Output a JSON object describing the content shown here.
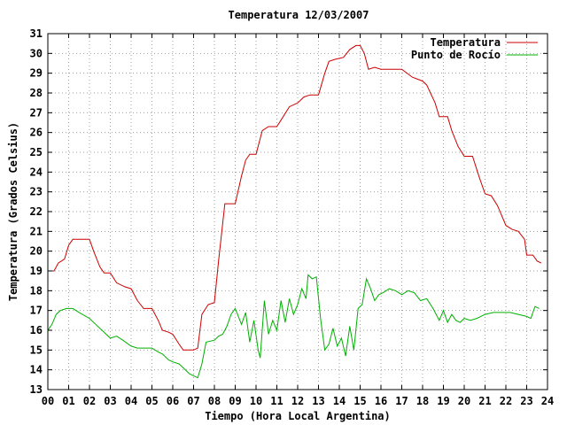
{
  "chart_data": {
    "type": "line",
    "title": "Temperatura 12/03/2007",
    "xlabel": "Tiempo (Hora Local Argentina)",
    "ylabel": "Temperatura (Grados Celsius)",
    "xlim": [
      0,
      24
    ],
    "ylim": [
      13,
      31
    ],
    "grid": true,
    "legend_position": "top-right",
    "x_ticks": [
      "00",
      "01",
      "02",
      "03",
      "04",
      "05",
      "06",
      "07",
      "08",
      "09",
      "10",
      "11",
      "12",
      "13",
      "14",
      "15",
      "16",
      "17",
      "18",
      "19",
      "20",
      "21",
      "22",
      "23",
      "24"
    ],
    "y_ticks": [
      "13",
      "14",
      "15",
      "16",
      "17",
      "18",
      "19",
      "20",
      "21",
      "22",
      "23",
      "24",
      "25",
      "26",
      "27",
      "28",
      "29",
      "30",
      "31"
    ],
    "series": [
      {
        "name": "Temperatura",
        "color": "#cc0000",
        "x": [
          0,
          0.3,
          0.5,
          0.8,
          1.0,
          1.2,
          1.5,
          2.0,
          2.2,
          2.5,
          2.7,
          3.0,
          3.3,
          3.7,
          4.0,
          4.3,
          4.6,
          4.8,
          5.0,
          5.3,
          5.5,
          5.8,
          6.0,
          6.3,
          6.5,
          6.8,
          7.0,
          7.2,
          7.4,
          7.7,
          8.0,
          8.2,
          8.5,
          9.0,
          9.3,
          9.5,
          9.7,
          10.0,
          10.3,
          10.6,
          11.0,
          11.3,
          11.6,
          12.0,
          12.3,
          12.6,
          13.0,
          13.3,
          13.5,
          13.8,
          14.2,
          14.5,
          14.8,
          15.0,
          15.2,
          15.4,
          15.7,
          16.0,
          16.5,
          17.0,
          17.5,
          18.0,
          18.2,
          18.6,
          18.8,
          19.2,
          19.4,
          19.7,
          20.0,
          20.4,
          20.7,
          21.0,
          21.3,
          21.6,
          22.0,
          22.3,
          22.6,
          22.9,
          23.0,
          23.3,
          23.5,
          23.7
        ],
        "y": [
          19.0,
          19.0,
          19.4,
          19.6,
          20.3,
          20.6,
          20.6,
          20.6,
          20.0,
          19.2,
          18.9,
          18.9,
          18.4,
          18.2,
          18.1,
          17.5,
          17.1,
          17.1,
          17.1,
          16.5,
          16.0,
          15.9,
          15.8,
          15.3,
          15.0,
          15.0,
          15.0,
          15.1,
          16.8,
          17.3,
          17.4,
          19.5,
          22.4,
          22.4,
          23.8,
          24.6,
          24.9,
          24.9,
          26.1,
          26.3,
          26.3,
          26.8,
          27.3,
          27.5,
          27.8,
          27.9,
          27.9,
          29.0,
          29.6,
          29.7,
          29.8,
          30.2,
          30.4,
          30.4,
          30.0,
          29.2,
          29.3,
          29.2,
          29.2,
          29.2,
          28.8,
          28.6,
          28.4,
          27.5,
          26.8,
          26.8,
          26.1,
          25.3,
          24.8,
          24.8,
          23.8,
          22.9,
          22.8,
          22.3,
          21.3,
          21.1,
          21.0,
          20.6,
          19.8,
          19.8,
          19.5,
          19.4
        ]
      },
      {
        "name": "Punto de Rocío",
        "color": "#00b000",
        "x": [
          0,
          0.2,
          0.4,
          0.6,
          0.9,
          1.2,
          1.5,
          2.0,
          2.3,
          2.6,
          2.8,
          3.0,
          3.3,
          3.6,
          4.0,
          4.3,
          4.6,
          5.0,
          5.3,
          5.5,
          5.8,
          6.0,
          6.3,
          6.5,
          6.8,
          7.0,
          7.2,
          7.4,
          7.6,
          8.0,
          8.2,
          8.4,
          8.6,
          8.8,
          9.0,
          9.3,
          9.5,
          9.7,
          9.9,
          10.1,
          10.2,
          10.4,
          10.6,
          10.8,
          11.0,
          11.2,
          11.4,
          11.6,
          11.8,
          12.0,
          12.2,
          12.4,
          12.5,
          12.7,
          12.9,
          13.1,
          13.3,
          13.5,
          13.7,
          13.9,
          14.1,
          14.3,
          14.5,
          14.7,
          14.9,
          15.1,
          15.3,
          15.5,
          15.7,
          15.9,
          16.1,
          16.4,
          16.7,
          17.0,
          17.3,
          17.6,
          17.9,
          18.2,
          18.5,
          18.8,
          19.0,
          19.2,
          19.4,
          19.6,
          19.8,
          20.0,
          20.3,
          20.6,
          21.0,
          21.4,
          21.8,
          22.2,
          22.6,
          23.0,
          23.2,
          23.4,
          23.6
        ],
        "y": [
          16.0,
          16.3,
          16.8,
          17.0,
          17.1,
          17.1,
          16.9,
          16.6,
          16.3,
          16.0,
          15.8,
          15.6,
          15.7,
          15.5,
          15.2,
          15.1,
          15.1,
          15.1,
          14.9,
          14.8,
          14.5,
          14.4,
          14.3,
          14.1,
          13.8,
          13.7,
          13.6,
          14.3,
          15.4,
          15.5,
          15.7,
          15.8,
          16.2,
          16.8,
          17.1,
          16.3,
          16.9,
          15.4,
          16.5,
          15.0,
          14.6,
          17.5,
          15.8,
          16.5,
          16.0,
          17.5,
          16.4,
          17.6,
          16.8,
          17.3,
          18.1,
          17.6,
          18.8,
          18.6,
          18.7,
          16.6,
          15.0,
          15.3,
          16.1,
          15.2,
          15.6,
          14.7,
          16.2,
          15.0,
          17.1,
          17.3,
          18.6,
          18.1,
          17.5,
          17.8,
          17.9,
          18.1,
          18.0,
          17.8,
          18.0,
          17.9,
          17.5,
          17.6,
          17.1,
          16.5,
          17.0,
          16.4,
          16.8,
          16.5,
          16.4,
          16.6,
          16.5,
          16.6,
          16.8,
          16.9,
          16.9,
          16.9,
          16.8,
          16.7,
          16.6,
          17.2,
          17.1
        ]
      }
    ]
  }
}
